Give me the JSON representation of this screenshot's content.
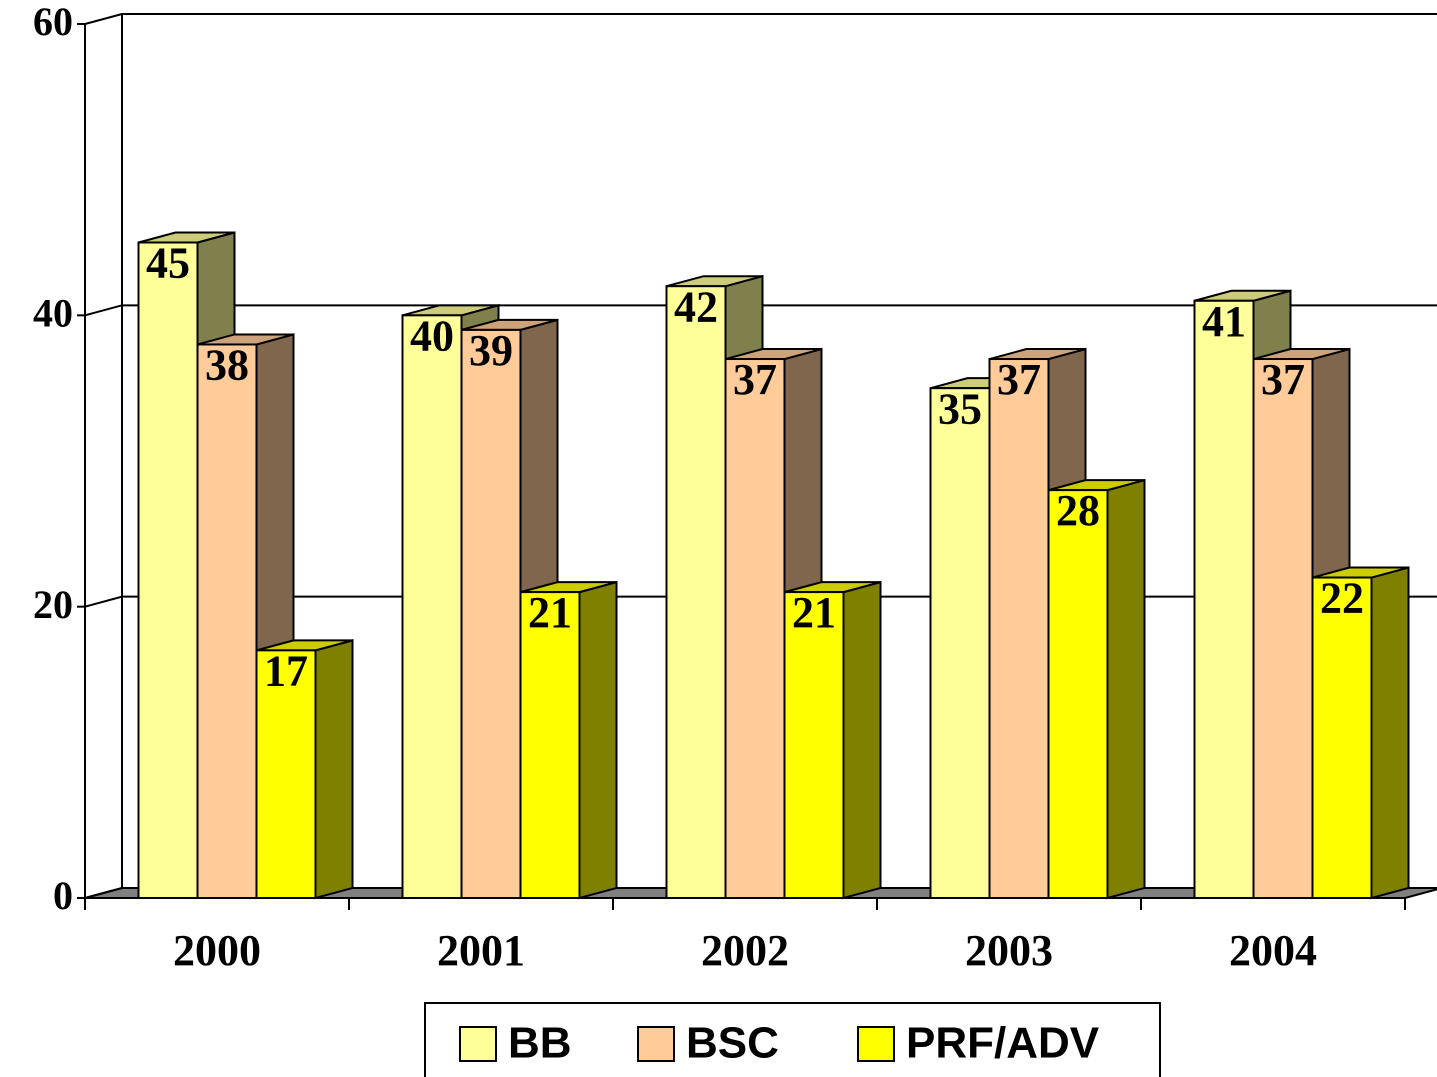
{
  "chart_data": {
    "type": "bar3d",
    "categories": [
      "2000",
      "2001",
      "2002",
      "2003",
      "2004"
    ],
    "series": [
      {
        "name": "BB",
        "color": "#ffff99",
        "values": [
          45,
          40,
          42,
          35,
          41
        ]
      },
      {
        "name": "BSC",
        "color": "#ffcc99",
        "values": [
          38,
          39,
          37,
          37,
          37
        ]
      },
      {
        "name": "PRF/ADV",
        "color": "#ffff00",
        "values": [
          17,
          21,
          21,
          28,
          22
        ]
      }
    ],
    "ylim": [
      0,
      60
    ],
    "yticks": [
      0,
      20,
      40,
      60
    ],
    "grid": true,
    "legend": "bottom"
  }
}
